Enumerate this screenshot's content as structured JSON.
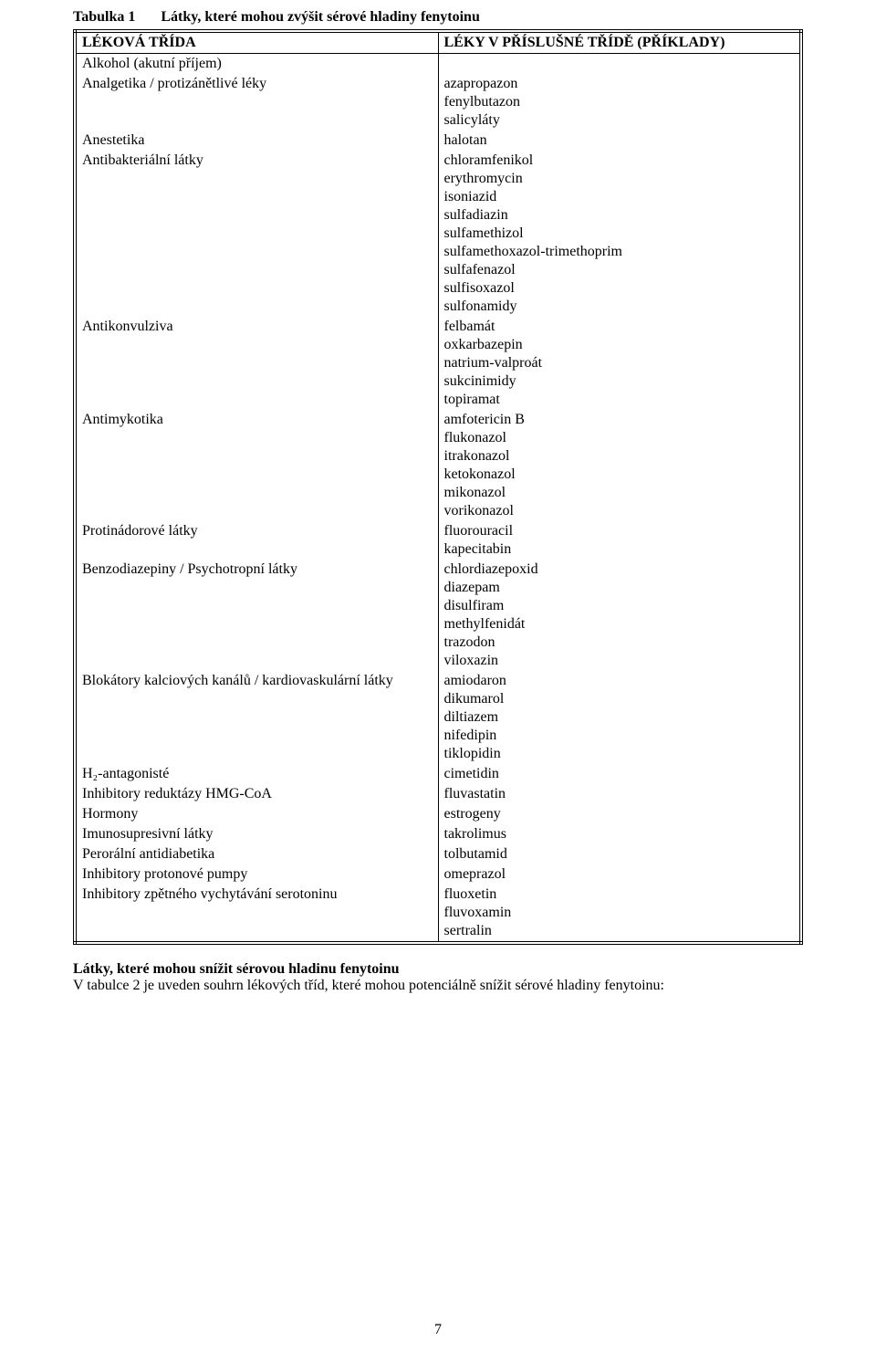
{
  "table": {
    "title_prefix": "Tabulka 1",
    "title_caption": "Látky, které mohou zvýšit sérové hladiny fenytoinu",
    "header_left": "LÉKOVÁ TŘÍDA",
    "header_right": "LÉKY V PŘÍSLUŠNÉ TŘÍDĚ (PŘÍKLADY)",
    "rows": [
      {
        "class": "Alkohol (akutní příjem)",
        "examples": []
      },
      {
        "class": "Analgetika / protizánětlivé léky",
        "examples": [
          "azapropazon",
          "fenylbutazon",
          "salicyláty"
        ]
      },
      {
        "class": "Anestetika",
        "examples": [
          "halotan"
        ]
      },
      {
        "class": "Antibakteriální látky",
        "examples": [
          "chloramfenikol",
          "erythromycin",
          "isoniazid",
          "sulfadiazin",
          "sulfamethizol",
          "sulfamethoxazol-trimethoprim",
          "sulfafenazol",
          "sulfisoxazol",
          "sulfonamidy"
        ]
      },
      {
        "class": "Antikonvulziva",
        "examples": [
          "felbamát",
          "oxkarbazepin",
          "natrium-valproát",
          "sukcinimidy",
          "topiramat"
        ]
      },
      {
        "class": "Antimykotika",
        "examples": [
          "amfotericin B",
          "flukonazol",
          "itrakonazol",
          "ketokonazol",
          "mikonazol",
          "vorikonazol"
        ]
      },
      {
        "class": "Protinádorové látky",
        "examples": [
          "fluorouracil",
          "kapecitabin"
        ]
      },
      {
        "class": "Benzodiazepiny / Psychotropní látky",
        "examples": [
          "chlordiazepoxid",
          "diazepam",
          "disulfiram",
          "methylfenidát",
          "trazodon",
          "viloxazin"
        ]
      },
      {
        "class": "Blokátory kalciových kanálů / kardiovaskulární látky",
        "examples": [
          "amiodaron",
          "dikumarol",
          "diltiazem",
          "nifedipin",
          "tiklopidin"
        ]
      },
      {
        "class": "H₂-antagonisté",
        "examples": [
          "cimetidin"
        ]
      },
      {
        "class": "Inhibitory reduktázy HMG-CoA",
        "examples": [
          "fluvastatin"
        ]
      },
      {
        "class": "Hormony",
        "examples": [
          "estrogeny"
        ]
      },
      {
        "class": "Imunosupresivní látky",
        "examples": [
          "takrolimus"
        ]
      },
      {
        "class": "Perorální antidiabetika",
        "examples": [
          "tolbutamid"
        ]
      },
      {
        "class": "Inhibitory protonové pumpy",
        "examples": [
          "omeprazol"
        ]
      },
      {
        "class": "Inhibitory zpětného vychytávání serotoninu",
        "examples": [
          "fluoxetin",
          "fluvoxamin",
          "sertralin"
        ]
      }
    ]
  },
  "post": {
    "bold_line": "Látky, které mohou snížit sérovou hladinu fenytoinu",
    "body_line": "V tabulce 2 je uveden souhrn lékových tříd, které mohou potenciálně snížit sérové hladiny fenytoinu:"
  },
  "page_number": "7"
}
